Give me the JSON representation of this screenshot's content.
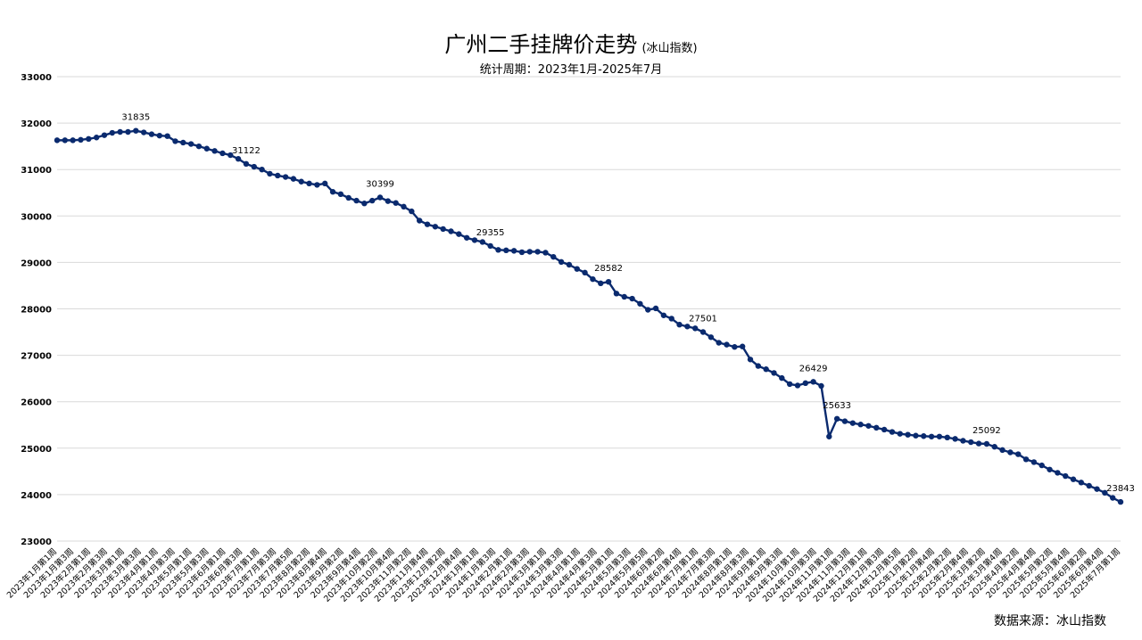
{
  "header": {
    "title": "广州二手挂牌价走势",
    "title_note": "(冰山指数)",
    "subtitle": "统计周期：2023年1月-2025年7月"
  },
  "footer": {
    "source": "数据来源：冰山指数"
  },
  "colors": {
    "line": "#0a2a6e",
    "marker": "#0a2a6e",
    "grid": "#d9d9d9"
  },
  "chart_data": {
    "type": "line",
    "title": "广州二手挂牌价走势",
    "subtitle": "统计周期：2023年1月-2025年7月",
    "xlabel": "",
    "ylabel": "",
    "ylim": [
      23000,
      33000
    ],
    "yticks": [
      23000,
      24000,
      25000,
      26000,
      27000,
      28000,
      29000,
      30000,
      31000,
      32000,
      33000
    ],
    "grid": true,
    "series": [
      {
        "values": [
          31630,
          31630,
          31630,
          31640,
          31660,
          31690,
          31740,
          31790,
          31810,
          31810,
          31835,
          31800,
          31760,
          31730,
          31720,
          31610,
          31580,
          31550,
          31500,
          31450,
          31400,
          31350,
          31310,
          31230,
          31122,
          31060,
          31000,
          30910,
          30870,
          30840,
          30800,
          30740,
          30700,
          30670,
          30700,
          30520,
          30470,
          30390,
          30330,
          30270,
          30330,
          30399,
          30320,
          30280,
          30200,
          30100,
          29900,
          29820,
          29770,
          29720,
          29670,
          29610,
          29530,
          29480,
          29440,
          29355,
          29270,
          29260,
          29250,
          29220,
          29230,
          29230,
          29210,
          29120,
          29010,
          28950,
          28860,
          28780,
          28640,
          28550,
          28582,
          28330,
          28260,
          28220,
          28110,
          27980,
          28010,
          27860,
          27790,
          27660,
          27620,
          27580,
          27501,
          27390,
          27270,
          27230,
          27180,
          27190,
          26910,
          26770,
          26700,
          26620,
          26510,
          26380,
          26350,
          26400,
          26429,
          26340,
          25250,
          25633,
          25580,
          25540,
          25510,
          25480,
          25440,
          25400,
          25350,
          25310,
          25290,
          25270,
          25260,
          25250,
          25250,
          25230,
          25200,
          25160,
          25130,
          25100,
          25092,
          25030,
          24960,
          24910,
          24870,
          24760,
          24700,
          24630,
          24540,
          24470,
          24400,
          24330,
          24260,
          24190,
          24120,
          24040,
          23930,
          23843
        ]
      }
    ],
    "point_labels": [
      {
        "index": 10,
        "text": "31835"
      },
      {
        "index": 24,
        "text": "31122"
      },
      {
        "index": 41,
        "text": "30399"
      },
      {
        "index": 55,
        "text": "29355"
      },
      {
        "index": 70,
        "text": "28582"
      },
      {
        "index": 82,
        "text": "27501"
      },
      {
        "index": 96,
        "text": "26429"
      },
      {
        "index": 99,
        "text": "25633"
      },
      {
        "index": 118,
        "text": "25092"
      },
      {
        "index": 135,
        "text": "23843"
      }
    ],
    "x_tick_labels": [
      "2023年1月第1周",
      "2023年1月第3周",
      "2023年2月第1周",
      "2023年2月第3周",
      "2023年3月第1周",
      "2023年3月第3周",
      "2023年4月第1周",
      "2023年4月第3周",
      "2023年5月第1周",
      "2023年5月第3周",
      "2023年6月第1周",
      "2023年6月第3周",
      "2023年7月第1周",
      "2023年7月第3周",
      "2023年7月第5周",
      "2023年8月第2周",
      "2023年8月第4周",
      "2023年9月第2周",
      "2023年9月第4周",
      "2023年10月第2周",
      "2023年10月第4周",
      "2023年11月第2周",
      "2023年11月第4周",
      "2023年12月第2周",
      "2023年12月第4周",
      "2024年1月第1周",
      "2024年1月第3周",
      "2024年2月第1周",
      "2024年2月第3周",
      "2024年3月第1周",
      "2024年3月第3周",
      "2024年4月第1周",
      "2024年4月第3周",
      "2024年5月第1周",
      "2024年5月第3周",
      "2024年5月第5周",
      "2024年6月第2周",
      "2024年6月第4周",
      "2024年7月第1周",
      "2024年7月第3周",
      "2024年8月第1周",
      "2024年8月第3周",
      "2024年9月第1周",
      "2024年9月第3周",
      "2024年10月第1周",
      "2024年10月第3周",
      "2024年11月第1周",
      "2024年11月第3周",
      "2024年12月第1周",
      "2024年12月第3周",
      "2024年12月第5周",
      "2025年1月第2周",
      "2025年1月第4周",
      "2025年2月第2周",
      "2025年2月第4周",
      "2025年3月第2周",
      "2025年3月第4周",
      "2025年4月第2周",
      "2025年4月第4周",
      "2025年5月第2周",
      "2025年5月第4周",
      "2025年6月第2周",
      "2025年6月第4周",
      "2025年7月第1周"
    ]
  }
}
